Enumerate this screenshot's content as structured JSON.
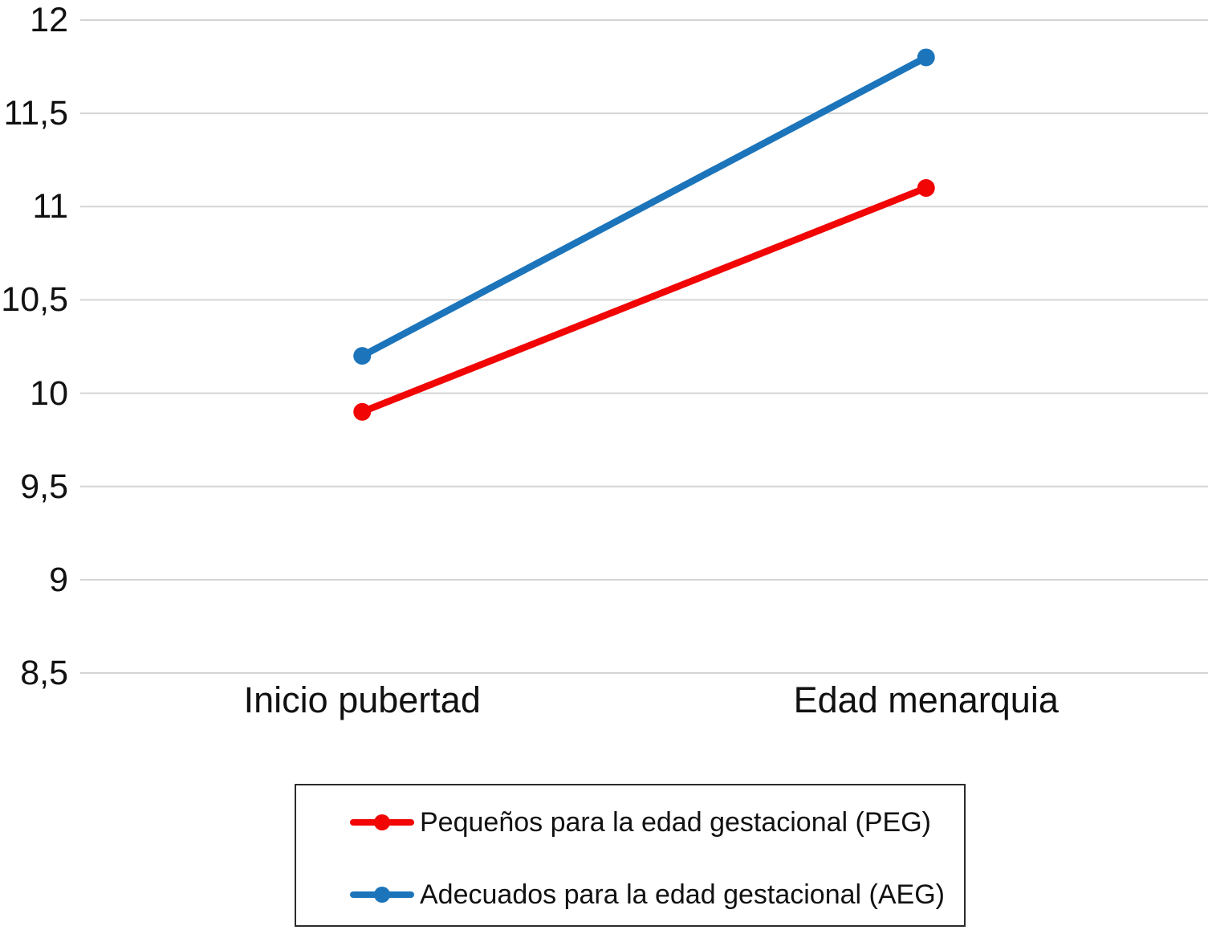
{
  "chart_data": {
    "type": "line",
    "title": "",
    "xlabel": "",
    "ylabel": "",
    "categories": [
      "Inicio pubertad",
      "Edad menarquia"
    ],
    "series": [
      {
        "name": "Pequeños para la edad gestacional (PEG)",
        "values": [
          9.9,
          11.1
        ],
        "color": "#f10505",
        "marker": "circle"
      },
      {
        "name": "Adecuados para la edad gestacional (AEG)",
        "values": [
          10.2,
          11.8
        ],
        "color": "#1c75bb",
        "marker": "circle"
      }
    ],
    "y_axis": {
      "min": 8.5,
      "max": 12,
      "step": 0.5,
      "tick_labels": [
        "8,5",
        "9",
        "9,5",
        "10",
        "10,5",
        "11",
        "11,5",
        "12"
      ]
    },
    "grid": true,
    "gridline_color": "#d4d4d4",
    "legend_position": "bottom",
    "background_color": "#ffffff",
    "text_color": "#111111"
  }
}
